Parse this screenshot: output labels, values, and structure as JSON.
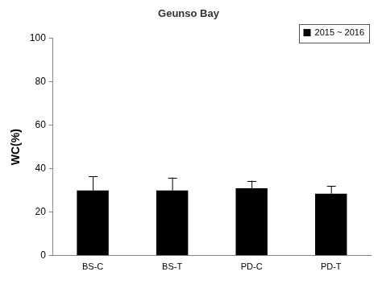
{
  "chart_data": {
    "type": "bar",
    "title": "Geunso Bay",
    "y_label": "WC(%)",
    "categories": [
      "BS-C",
      "BS-T",
      "PD-C",
      "PD-T"
    ],
    "series": [
      {
        "name": "2015 ~ 2016",
        "color": "#000000",
        "values": [
          30,
          30,
          31,
          28.5
        ],
        "errors": [
          6.5,
          6,
          3.5,
          3.5
        ]
      }
    ],
    "ylim": [
      0,
      100
    ],
    "yticks": [
      0,
      20,
      40,
      60,
      80,
      100
    ],
    "grid": false,
    "legend": "upper right"
  }
}
